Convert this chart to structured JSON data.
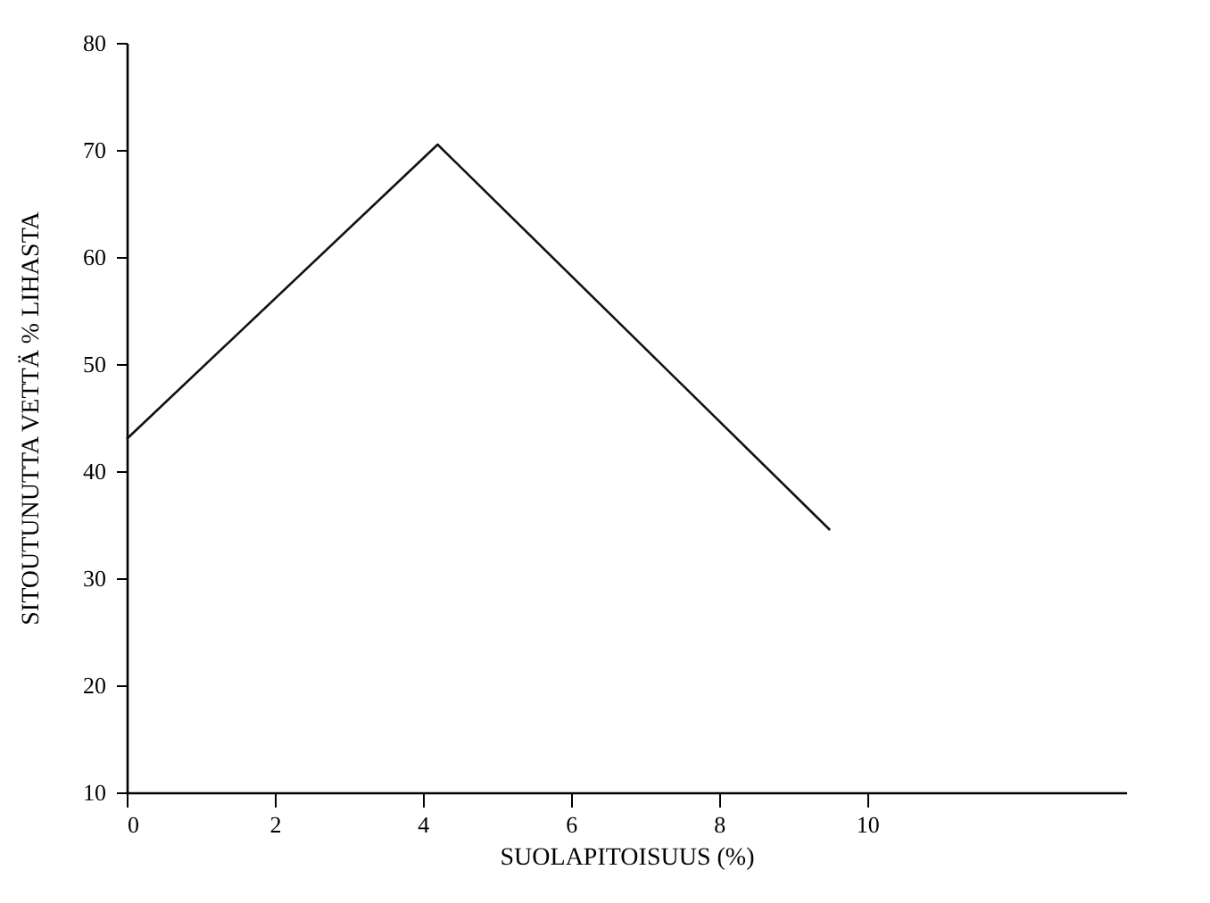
{
  "chart_data": {
    "type": "line",
    "xlabel": "SUOLAPITOISUUS (%)",
    "ylabel": "SITOUTUNUTTA VETTÄ % LIHASTA",
    "x": [
      0,
      4.2,
      9.5
    ],
    "series": [
      {
        "color": "#111111",
        "values": [
          43,
          70.5,
          34.5
        ]
      }
    ],
    "xlim": [
      0,
      13.5
    ],
    "xticks": [
      0,
      2,
      4,
      6,
      8,
      10
    ],
    "ylim": [
      10,
      80
    ],
    "yticks": [
      10,
      20,
      30,
      40,
      50,
      60,
      70,
      80
    ],
    "grid": false,
    "marker": "none",
    "line_style": "solid"
  }
}
